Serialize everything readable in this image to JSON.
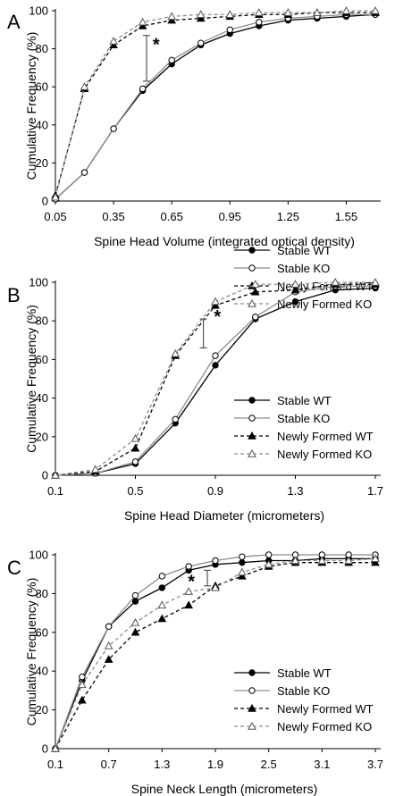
{
  "chart_data": [
    {
      "type": "line",
      "panel": "A",
      "xlabel": "Spine Head Volume (integrated optical density)",
      "ylabel": "Cumulative Frequency (%)",
      "xticks": [
        "0.05",
        "0.35",
        "0.65",
        "0.95",
        "1.25",
        "1.55"
      ],
      "xlim": [
        0.05,
        1.7
      ],
      "ylim": [
        0,
        100
      ],
      "yticks": [
        "0",
        "20",
        "40",
        "60",
        "80",
        "100"
      ],
      "legend_position": "right",
      "annotation": "*",
      "series": [
        {
          "name": "Stable WT",
          "style": "solid-black-filled-circle",
          "x": [
            0.05,
            0.2,
            0.35,
            0.5,
            0.65,
            0.8,
            0.95,
            1.1,
            1.25,
            1.4,
            1.55,
            1.7
          ],
          "y": [
            1,
            15,
            38,
            58,
            72,
            82,
            88,
            92,
            95,
            96,
            97,
            98
          ]
        },
        {
          "name": "Stable KO",
          "style": "solid-gray-open-circle",
          "x": [
            0.05,
            0.2,
            0.35,
            0.5,
            0.65,
            0.8,
            0.95,
            1.1,
            1.25,
            1.4,
            1.55,
            1.7
          ],
          "y": [
            1,
            15,
            38,
            59,
            74,
            83,
            90,
            94,
            96,
            97,
            98,
            98
          ]
        },
        {
          "name": "Newly Formed WT",
          "style": "dashed-black-filled-triangle",
          "x": [
            0.05,
            0.2,
            0.35,
            0.5,
            0.65,
            0.8,
            0.95,
            1.1,
            1.25,
            1.4,
            1.55,
            1.7
          ],
          "y": [
            3,
            59,
            82,
            92,
            95,
            96,
            97,
            98,
            98,
            99,
            99,
            99
          ]
        },
        {
          "name": "Newly Formed KO",
          "style": "dashed-gray-open-triangle",
          "x": [
            0.05,
            0.2,
            0.35,
            0.5,
            0.65,
            0.8,
            0.95,
            1.1,
            1.25,
            1.4,
            1.55,
            1.7
          ],
          "y": [
            2,
            60,
            84,
            94,
            97,
            98,
            98,
            99,
            99,
            99,
            100,
            100
          ]
        }
      ]
    },
    {
      "type": "line",
      "panel": "B",
      "xlabel": "Spine Head Diameter (micrometers)",
      "ylabel": "Cumulative Frequency (%)",
      "xticks": [
        "0.1",
        "0.5",
        "0.9",
        "1.3",
        "1.7"
      ],
      "xlim": [
        0.1,
        1.7
      ],
      "ylim": [
        0,
        100
      ],
      "yticks": [
        "0",
        "20",
        "40",
        "60",
        "80",
        "100"
      ],
      "legend_position": "bottom-right",
      "annotation": "*",
      "series": [
        {
          "name": "Stable WT",
          "style": "solid-black-filled-circle",
          "x": [
            0.1,
            0.3,
            0.5,
            0.7,
            0.9,
            1.1,
            1.3,
            1.5,
            1.7
          ],
          "y": [
            0,
            1,
            6,
            27,
            57,
            81,
            90,
            96,
            97
          ]
        },
        {
          "name": "Stable KO",
          "style": "solid-gray-open-circle",
          "x": [
            0.1,
            0.3,
            0.5,
            0.7,
            0.9,
            1.1,
            1.3,
            1.5,
            1.7
          ],
          "y": [
            0,
            1,
            7,
            29,
            62,
            82,
            95,
            98,
            98
          ]
        },
        {
          "name": "Newly Formed WT",
          "style": "dashed-black-filled-triangle",
          "x": [
            0.1,
            0.3,
            0.5,
            0.7,
            0.9,
            1.1,
            1.3,
            1.5,
            1.7
          ],
          "y": [
            0,
            2,
            14,
            62,
            88,
            95,
            96,
            99,
            99
          ]
        },
        {
          "name": "Newly Formed KO",
          "style": "dashed-gray-open-triangle",
          "x": [
            0.1,
            0.3,
            0.5,
            0.7,
            0.9,
            1.1,
            1.3,
            1.5,
            1.7
          ],
          "y": [
            0,
            3,
            19,
            63,
            90,
            99,
            99,
            100,
            100
          ]
        }
      ]
    },
    {
      "type": "line",
      "panel": "C",
      "xlabel": "Spine Neck Length (micrometers)",
      "ylabel": "Cumulative Frequency (%)",
      "xticks": [
        "0.1",
        "0.7",
        "1.3",
        "1.9",
        "2.5",
        "3.1",
        "3.7"
      ],
      "xlim": [
        0.1,
        3.7
      ],
      "ylim": [
        0,
        100
      ],
      "yticks": [
        "0",
        "20",
        "40",
        "60",
        "80",
        "100"
      ],
      "legend_position": "bottom-right",
      "annotation": "*",
      "series": [
        {
          "name": "Stable WT",
          "style": "solid-black-filled-circle",
          "x": [
            0.1,
            0.4,
            0.7,
            1.0,
            1.3,
            1.6,
            1.9,
            2.2,
            2.5,
            2.8,
            3.1,
            3.4,
            3.7
          ],
          "y": [
            0,
            35,
            63,
            76,
            83,
            92,
            95,
            96,
            97,
            97,
            98,
            98,
            98
          ]
        },
        {
          "name": "Stable KO",
          "style": "solid-gray-open-circle",
          "x": [
            0.1,
            0.4,
            0.7,
            1.0,
            1.3,
            1.6,
            1.9,
            2.2,
            2.5,
            2.8,
            3.1,
            3.4,
            3.7
          ],
          "y": [
            0,
            37,
            63,
            79,
            89,
            94,
            97,
            99,
            100,
            100,
            100,
            100,
            100
          ]
        },
        {
          "name": "Newly Formed WT",
          "style": "dashed-black-filled-triangle",
          "x": [
            0.1,
            0.4,
            0.7,
            1.0,
            1.3,
            1.6,
            1.9,
            2.2,
            2.5,
            2.8,
            3.1,
            3.4,
            3.7
          ],
          "y": [
            0,
            25,
            46,
            60,
            67,
            74,
            84,
            89,
            94,
            96,
            96,
            96,
            96
          ]
        },
        {
          "name": "Newly Formed KO",
          "style": "dashed-gray-open-triangle",
          "x": [
            0.1,
            0.4,
            0.7,
            1.0,
            1.3,
            1.6,
            1.9,
            2.2,
            2.5,
            2.8,
            3.1,
            3.4,
            3.7
          ],
          "y": [
            0,
            33,
            53,
            65,
            74,
            81,
            83,
            91,
            95,
            97,
            97,
            97,
            98
          ]
        }
      ]
    }
  ]
}
